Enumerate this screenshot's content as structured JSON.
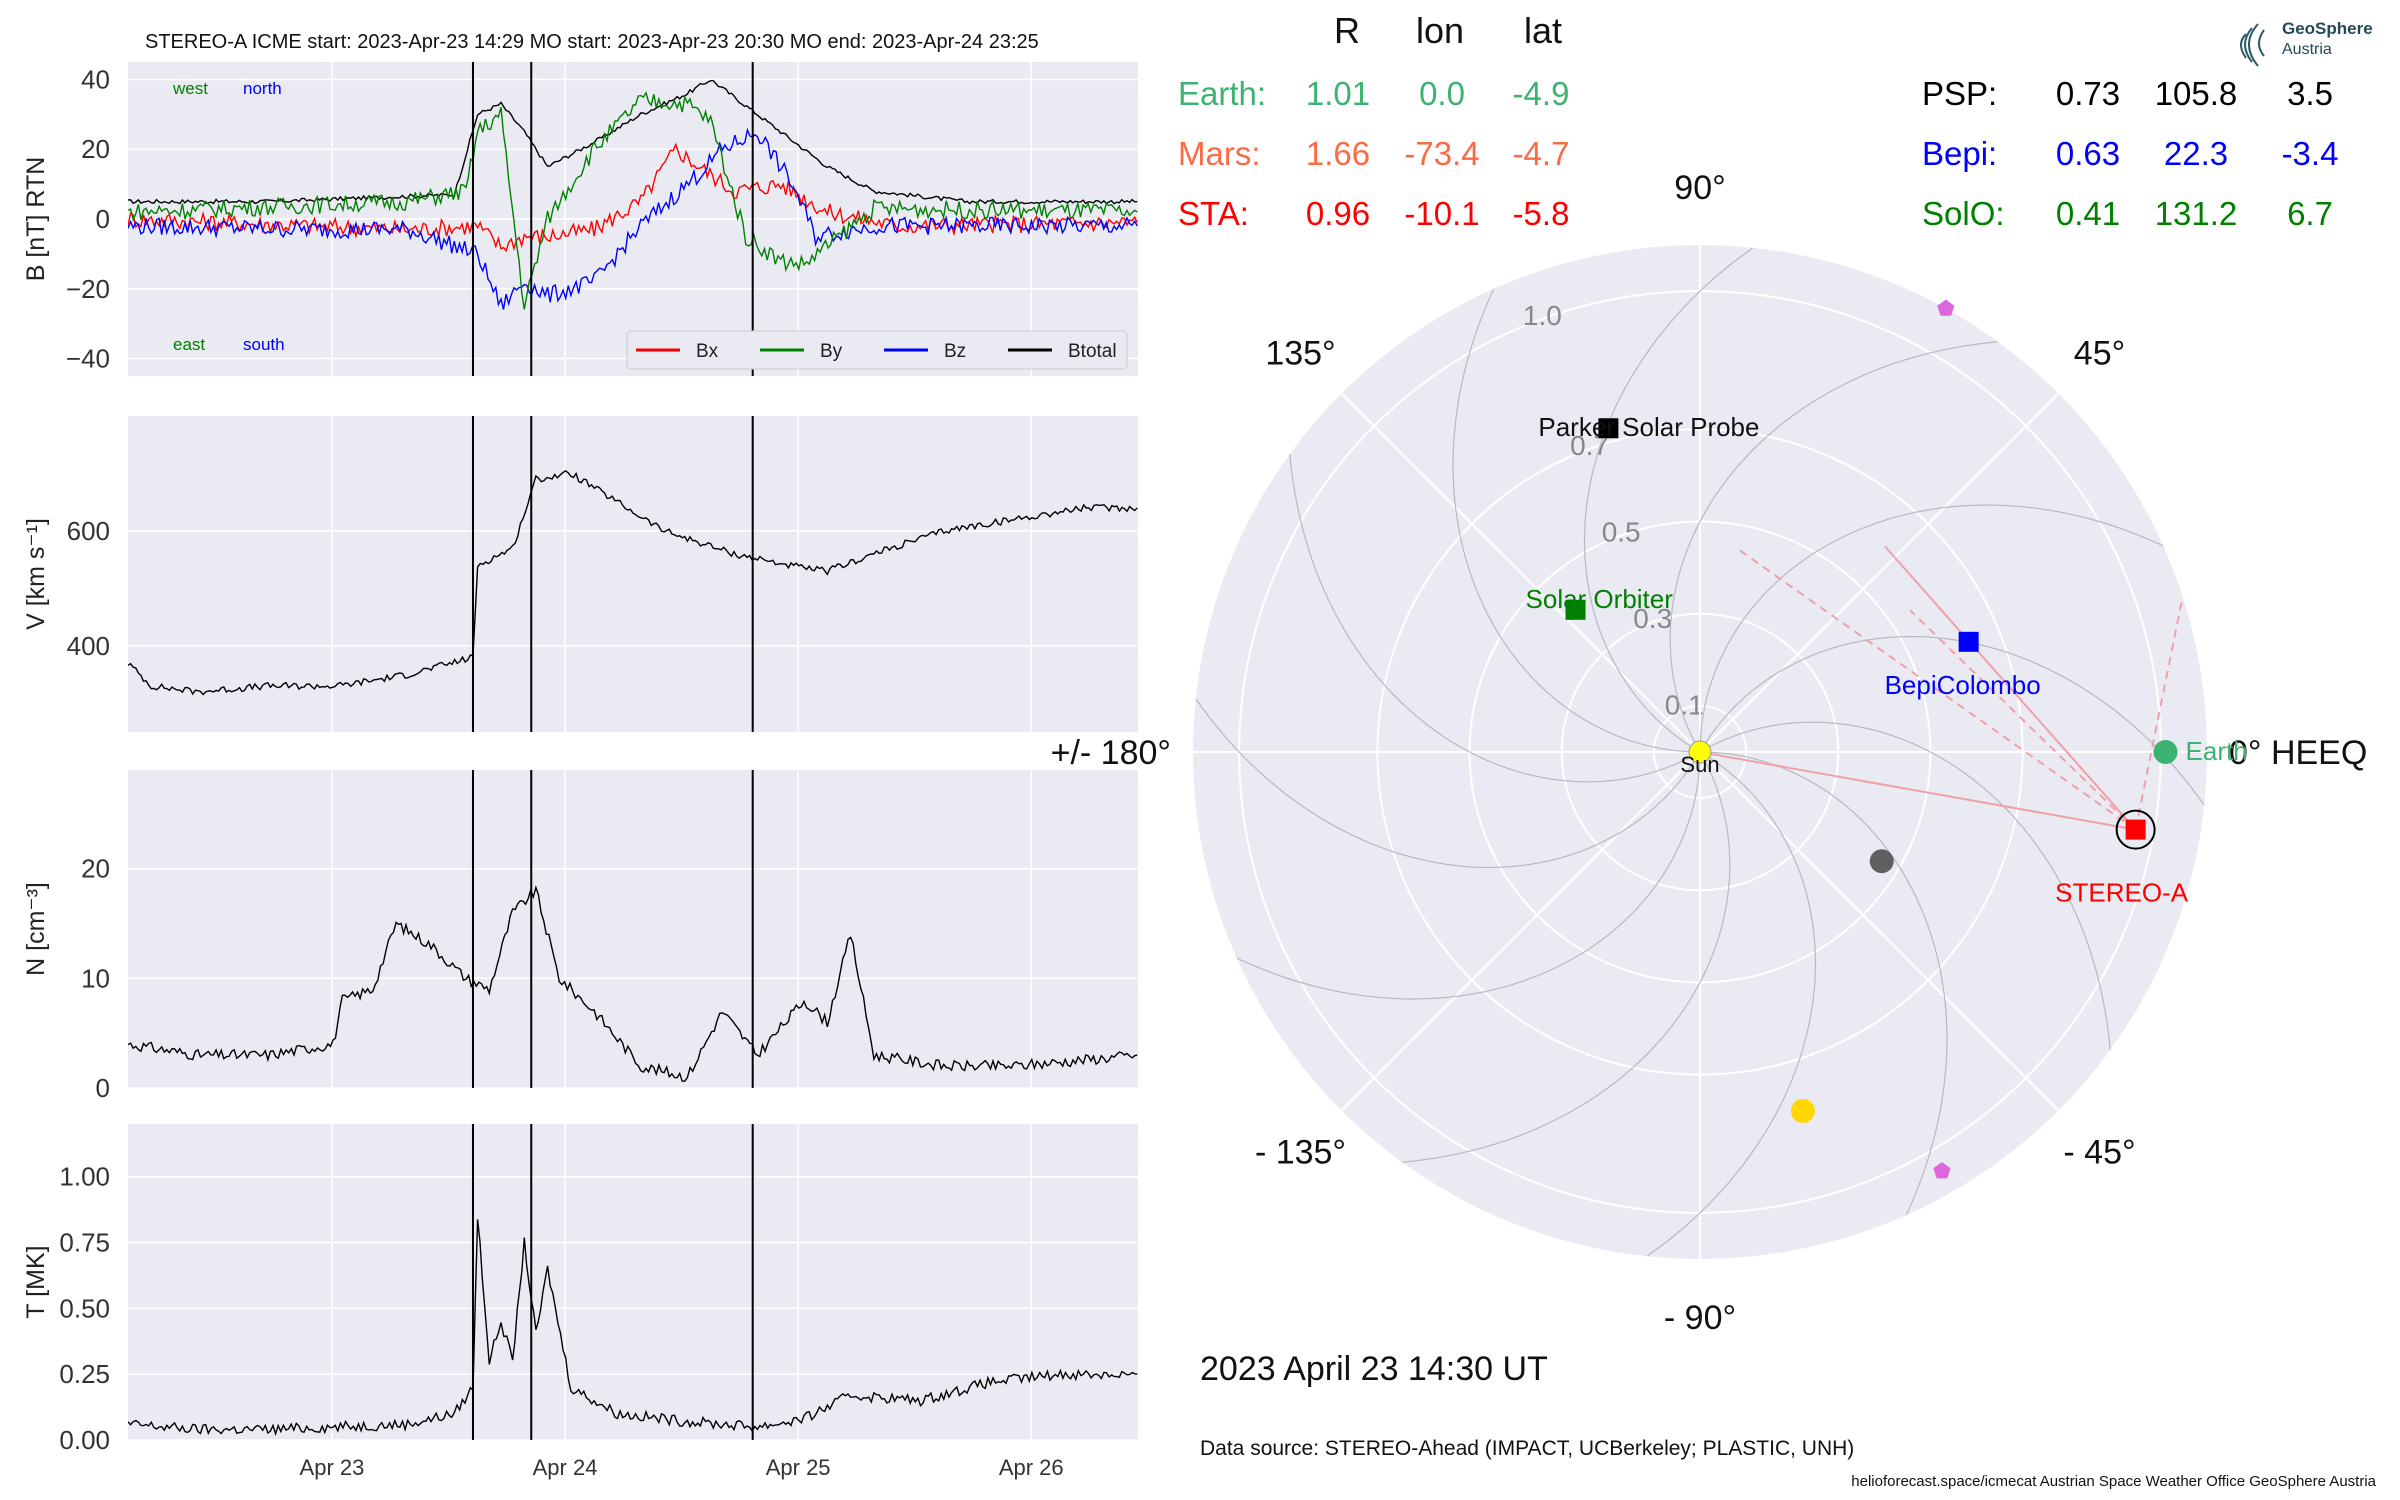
{
  "header": {
    "title": "STEREO-A    ICME start: 2023-Apr-23 14:29   MO start: 2023-Apr-23 20:30   MO end: 2023-Apr-24 23:25"
  },
  "logo": {
    "line1": "GeoSphere",
    "line2": "Austria"
  },
  "positions": {
    "columns": [
      "R",
      "lon",
      "lat"
    ],
    "left": [
      {
        "name": "Earth:",
        "R": "1.01",
        "lon": "0.0",
        "lat": "-4.9",
        "color": "#3cb371"
      },
      {
        "name": "Mars:",
        "R": "1.66",
        "lon": "-73.4",
        "lat": "-4.7",
        "color": "#fa6a45"
      },
      {
        "name": "STA:",
        "R": "0.96",
        "lon": "-10.1",
        "lat": "-5.8",
        "color": "#ff0000"
      }
    ],
    "right": [
      {
        "name": "PSP:",
        "R": "0.73",
        "lon": "105.8",
        "lat": "3.5",
        "color": "#000000"
      },
      {
        "name": "Bepi:",
        "R": "0.63",
        "lon": "22.3",
        "lat": "-3.4",
        "color": "#0000ff"
      },
      {
        "name": "SolO:",
        "R": "0.41",
        "lon": "131.2",
        "lat": "6.7",
        "color": "#008000"
      }
    ]
  },
  "date_label": "2023 April 23  14:30 UT",
  "source_label": "Data source: STEREO-Ahead (IMPACT, UCBerkeley; PLASTIC, UNH)",
  "credits": "helioforecast.space/icmecat   Austrian Space Weather Office   GeoSphere Austria",
  "colors": {
    "panel_bg": "#eaeaf2",
    "grid": "#ffffff",
    "bx": "#ff0000",
    "by": "#008000",
    "bz": "#0000ff",
    "btotal": "#000000",
    "fov": "#f0a0a8"
  },
  "chart_data": [
    {
      "type": "line",
      "id": "magnetic_field",
      "ylabel": "B [nT] RTN",
      "ylim": [
        -45,
        45
      ],
      "yticks": [
        "40",
        "20",
        "0",
        "−20",
        "−40"
      ],
      "ytick_values": [
        40,
        20,
        0,
        -20,
        -40
      ],
      "x_range_days": [
        "2023-04-22 03:00",
        "2023-04-26 11:00"
      ],
      "annotations": {
        "west": "west",
        "north": "north",
        "east": "east",
        "south": "south"
      },
      "legend": [
        "Bx",
        "By",
        "Bz",
        "Btotal"
      ],
      "legend_position": "lower-right",
      "series": [
        {
          "name": "Btotal",
          "points": [
            [
              0,
              5
            ],
            [
              0.6,
              5
            ],
            [
              1.0,
              6
            ],
            [
              1.4,
              7
            ],
            [
              1.5,
              30
            ],
            [
              1.6,
              33
            ],
            [
              1.7,
              25
            ],
            [
              1.8,
              15
            ],
            [
              2.0,
              22
            ],
            [
              2.2,
              30
            ],
            [
              2.4,
              36
            ],
            [
              2.5,
              40
            ],
            [
              2.6,
              35
            ],
            [
              2.8,
              25
            ],
            [
              3.0,
              15
            ],
            [
              3.2,
              8
            ],
            [
              3.6,
              5
            ],
            [
              4.33,
              5
            ]
          ]
        },
        {
          "name": "Bx",
          "points": [
            [
              0,
              0
            ],
            [
              0.8,
              -2
            ],
            [
              1.2,
              -3
            ],
            [
              1.5,
              -2
            ],
            [
              1.6,
              -8
            ],
            [
              1.7,
              -5
            ],
            [
              1.8,
              -5
            ],
            [
              2.0,
              -3
            ],
            [
              2.2,
              5
            ],
            [
              2.35,
              20
            ],
            [
              2.45,
              15
            ],
            [
              2.6,
              8
            ],
            [
              2.8,
              10
            ],
            [
              3.0,
              2
            ],
            [
              3.3,
              -2
            ],
            [
              4.33,
              -1
            ]
          ]
        },
        {
          "name": "By",
          "points": [
            [
              0,
              2
            ],
            [
              0.8,
              4
            ],
            [
              1.2,
              5
            ],
            [
              1.45,
              8
            ],
            [
              1.5,
              25
            ],
            [
              1.6,
              30
            ],
            [
              1.7,
              -25
            ],
            [
              1.8,
              0
            ],
            [
              2.0,
              20
            ],
            [
              2.2,
              34
            ],
            [
              2.4,
              33
            ],
            [
              2.5,
              28
            ],
            [
              2.65,
              -5
            ],
            [
              2.8,
              -12
            ],
            [
              2.9,
              -13
            ],
            [
              3.05,
              -5
            ],
            [
              3.2,
              3
            ],
            [
              4.33,
              2
            ]
          ]
        },
        {
          "name": "Bz",
          "points": [
            [
              0,
              -2
            ],
            [
              0.8,
              -3
            ],
            [
              1.2,
              -3
            ],
            [
              1.5,
              -10
            ],
            [
              1.6,
              -25
            ],
            [
              1.7,
              -18
            ],
            [
              1.8,
              -22
            ],
            [
              2.0,
              -18
            ],
            [
              2.2,
              -2
            ],
            [
              2.45,
              13
            ],
            [
              2.55,
              20
            ],
            [
              2.7,
              25
            ],
            [
              2.85,
              10
            ],
            [
              2.95,
              -5
            ],
            [
              3.2,
              -2
            ],
            [
              4.33,
              -2
            ]
          ]
        }
      ]
    },
    {
      "type": "line",
      "id": "speed",
      "ylabel": "V [km s⁻¹]",
      "ylim": [
        250,
        800
      ],
      "yticks": [
        "600",
        "400"
      ],
      "ytick_values": [
        600,
        400
      ],
      "series": [
        {
          "name": "V",
          "points": [
            [
              0,
              370
            ],
            [
              0.1,
              330
            ],
            [
              0.3,
              320
            ],
            [
              0.6,
              330
            ],
            [
              0.9,
              330
            ],
            [
              1.2,
              350
            ],
            [
              1.48,
              380
            ],
            [
              1.5,
              540
            ],
            [
              1.65,
              570
            ],
            [
              1.75,
              690
            ],
            [
              1.9,
              700
            ],
            [
              2.1,
              650
            ],
            [
              2.3,
              600
            ],
            [
              2.6,
              560
            ],
            [
              2.9,
              535
            ],
            [
              3.0,
              530
            ],
            [
              3.2,
              560
            ],
            [
              3.5,
              600
            ],
            [
              3.8,
              620
            ],
            [
              4.1,
              640
            ],
            [
              4.33,
              640
            ]
          ]
        }
      ]
    },
    {
      "type": "line",
      "id": "density",
      "ylabel": "N [cm⁻³]",
      "ylim": [
        0,
        29
      ],
      "yticks": [
        "20",
        "10",
        "0"
      ],
      "ytick_values": [
        20,
        10,
        0
      ],
      "series": [
        {
          "name": "N",
          "points": [
            [
              0,
              4
            ],
            [
              0.3,
              3
            ],
            [
              0.6,
              3
            ],
            [
              0.88,
              4
            ],
            [
              0.92,
              8
            ],
            [
              1.05,
              9
            ],
            [
              1.15,
              15
            ],
            [
              1.3,
              13
            ],
            [
              1.45,
              10
            ],
            [
              1.55,
              9
            ],
            [
              1.65,
              16
            ],
            [
              1.75,
              18
            ],
            [
              1.85,
              10
            ],
            [
              2.0,
              7
            ],
            [
              2.2,
              2
            ],
            [
              2.4,
              1
            ],
            [
              2.55,
              7
            ],
            [
              2.7,
              3
            ],
            [
              2.9,
              8
            ],
            [
              3.0,
              6
            ],
            [
              3.1,
              14
            ],
            [
              3.2,
              3
            ],
            [
              3.5,
              2
            ],
            [
              3.8,
              2
            ],
            [
              4.33,
              3
            ]
          ]
        }
      ]
    },
    {
      "type": "line",
      "id": "temperature",
      "ylabel": "T [MK]",
      "ylim": [
        0,
        1.2
      ],
      "yticks": [
        "1.00",
        "0.75",
        "0.50",
        "0.25",
        "0.00"
      ],
      "ytick_values": [
        1.0,
        0.75,
        0.5,
        0.25,
        0.0
      ],
      "xticks": [
        "Apr 23",
        "Apr 24",
        "Apr 25",
        "Apr 26"
      ],
      "xtick_values": [
        0.875,
        1.875,
        2.875,
        3.875
      ],
      "series": [
        {
          "name": "T",
          "points": [
            [
              0,
              0.06
            ],
            [
              0.3,
              0.04
            ],
            [
              0.6,
              0.04
            ],
            [
              0.9,
              0.05
            ],
            [
              1.2,
              0.06
            ],
            [
              1.4,
              0.1
            ],
            [
              1.48,
              0.2
            ],
            [
              1.5,
              0.85
            ],
            [
              1.55,
              0.3
            ],
            [
              1.6,
              0.45
            ],
            [
              1.65,
              0.3
            ],
            [
              1.7,
              0.75
            ],
            [
              1.75,
              0.4
            ],
            [
              1.8,
              0.65
            ],
            [
              1.9,
              0.2
            ],
            [
              2.1,
              0.1
            ],
            [
              2.4,
              0.07
            ],
            [
              2.7,
              0.05
            ],
            [
              2.9,
              0.08
            ],
            [
              3.1,
              0.17
            ],
            [
              3.4,
              0.15
            ],
            [
              3.7,
              0.22
            ],
            [
              4.0,
              0.25
            ],
            [
              4.33,
              0.25
            ]
          ]
        }
      ]
    },
    {
      "type": "polar",
      "id": "heeq_positions",
      "r_max": 1.1,
      "radial_labels": [
        "0.1",
        "0.3",
        "0.5",
        "0.7",
        "1.0"
      ],
      "radial_values": [
        0.1,
        0.3,
        0.5,
        0.7,
        1.0
      ],
      "angle_labels": [
        "0° HEEQ",
        "45°",
        "90°",
        "135°",
        "+/- 180°",
        "- 135°",
        "- 90°",
        "- 45°"
      ],
      "angle_values": [
        0,
        45,
        90,
        135,
        180,
        -135,
        -90,
        -45
      ],
      "bodies": [
        {
          "name": "Sun",
          "r": 0.0,
          "lon": 0.0,
          "color": "#ffff00",
          "marker": "circle"
        },
        {
          "name": "Earth",
          "r": 1.01,
          "lon": 0.0,
          "color": "#3cb371",
          "marker": "circle"
        },
        {
          "name": "STEREO-A",
          "r": 0.96,
          "lon": -10.1,
          "color": "#ff0000",
          "marker": "square"
        },
        {
          "name": "BepiColombo",
          "r": 0.63,
          "lon": 22.3,
          "color": "#0000ff",
          "marker": "square"
        },
        {
          "name": "Solar Orbiter",
          "r": 0.41,
          "lon": 131.2,
          "color": "#008000",
          "marker": "square"
        },
        {
          "name": "Parker Solar Probe",
          "r": 0.73,
          "lon": 105.8,
          "color": "#000000",
          "marker": "square"
        },
        {
          "name": "",
          "r": 0.46,
          "lon": -31.0,
          "color": "#606060",
          "marker": "circle"
        },
        {
          "name": "",
          "r": 0.81,
          "lon": -74.0,
          "color": "#ffd700",
          "marker": "circle"
        },
        {
          "name": "",
          "r": 1.1,
          "lon": 61.0,
          "color": "#dd66dd",
          "marker": "pentagon"
        },
        {
          "name": "",
          "r": 1.05,
          "lon": -60.0,
          "color": "#dd66dd",
          "marker": "pentagon"
        }
      ]
    }
  ]
}
